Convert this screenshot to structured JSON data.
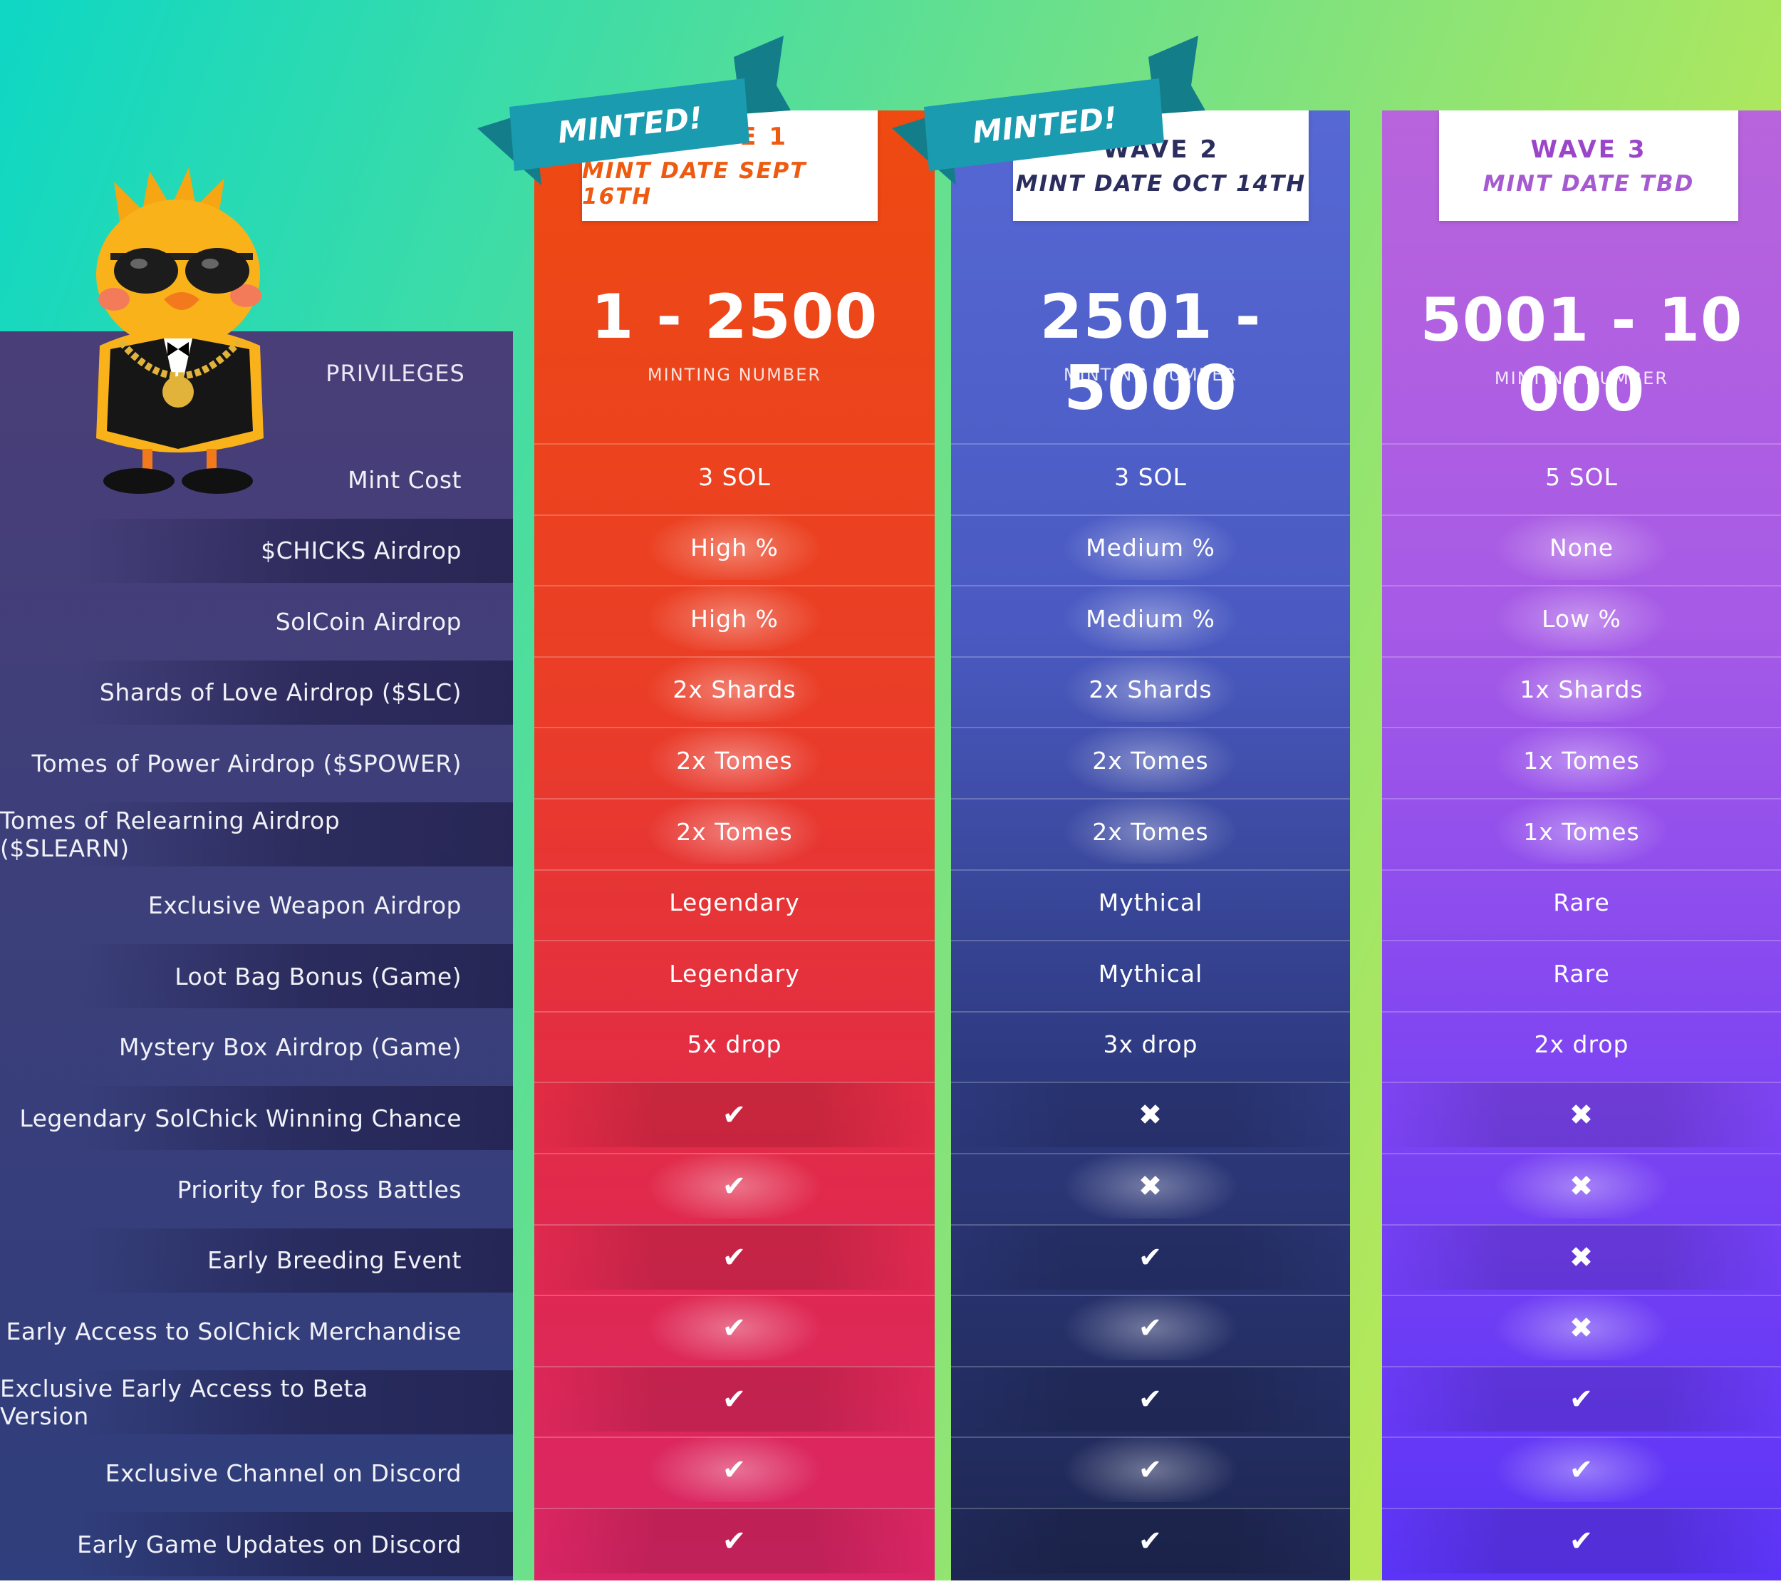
{
  "privileges_header": "PRIVILEGES",
  "privileges": [
    "Mint Cost",
    "$CHICKS Airdrop",
    "SolCoin Airdrop",
    "Shards of Love Airdrop ($SLC)",
    "Tomes of Power Airdrop ($SPOWER)",
    "Tomes of Relearning Airdrop ($SLEARN)",
    "Exclusive Weapon Airdrop",
    "Loot Bag Bonus (Game)",
    "Mystery Box Airdrop (Game)",
    "Legendary SolChick Winning Chance",
    "Priority for Boss Battles",
    "Early Breeding Event",
    "Early Access to SolChick Merchandise",
    "Exclusive Early Access to Beta Version",
    "Exclusive Channel on Discord",
    "Early Game Updates on Discord"
  ],
  "waves": [
    {
      "title": "WAVE 1",
      "date": "MINT DATE SEPT 16TH",
      "ribbon": "MINTED!",
      "range": "1 - 2500",
      "range_label": "MINTING NUMBER",
      "accent": "#ee4a11",
      "values": [
        "3 SOL",
        "High %",
        "High %",
        "2x Shards",
        "2x Tomes",
        "2x Tomes",
        "Legendary",
        "Legendary",
        "5x drop",
        "✔",
        "✔",
        "✔",
        "✔",
        "✔",
        "✔",
        "✔"
      ]
    },
    {
      "title": "WAVE 2",
      "date": "MINT DATE OCT 14TH",
      "ribbon": "MINTED!",
      "range": "2501 - 5000",
      "range_label": "MINTING NUMBER",
      "accent": "#2b2d5e",
      "values": [
        "3 SOL",
        "Medium %",
        "Medium %",
        "2x Shards",
        "2x Tomes",
        "2x Tomes",
        "Mythical",
        "Mythical",
        "3x drop",
        "✖",
        "✖",
        "✔",
        "✔",
        "✔",
        "✔",
        "✔"
      ]
    },
    {
      "title": "WAVE 3",
      "date": "MINT DATE TBD",
      "range": "5001 - 10 000",
      "range_label": "MINTING NUMBER",
      "accent": "#9b45c9",
      "values": [
        "5 SOL",
        "None",
        "Low %",
        "1x Shards",
        "1x Tomes",
        "1x Tomes",
        "Rare",
        "Rare",
        "2x drop",
        "✖",
        "✖",
        "✖",
        "✖",
        "✔",
        "✔",
        "✔"
      ]
    }
  ]
}
